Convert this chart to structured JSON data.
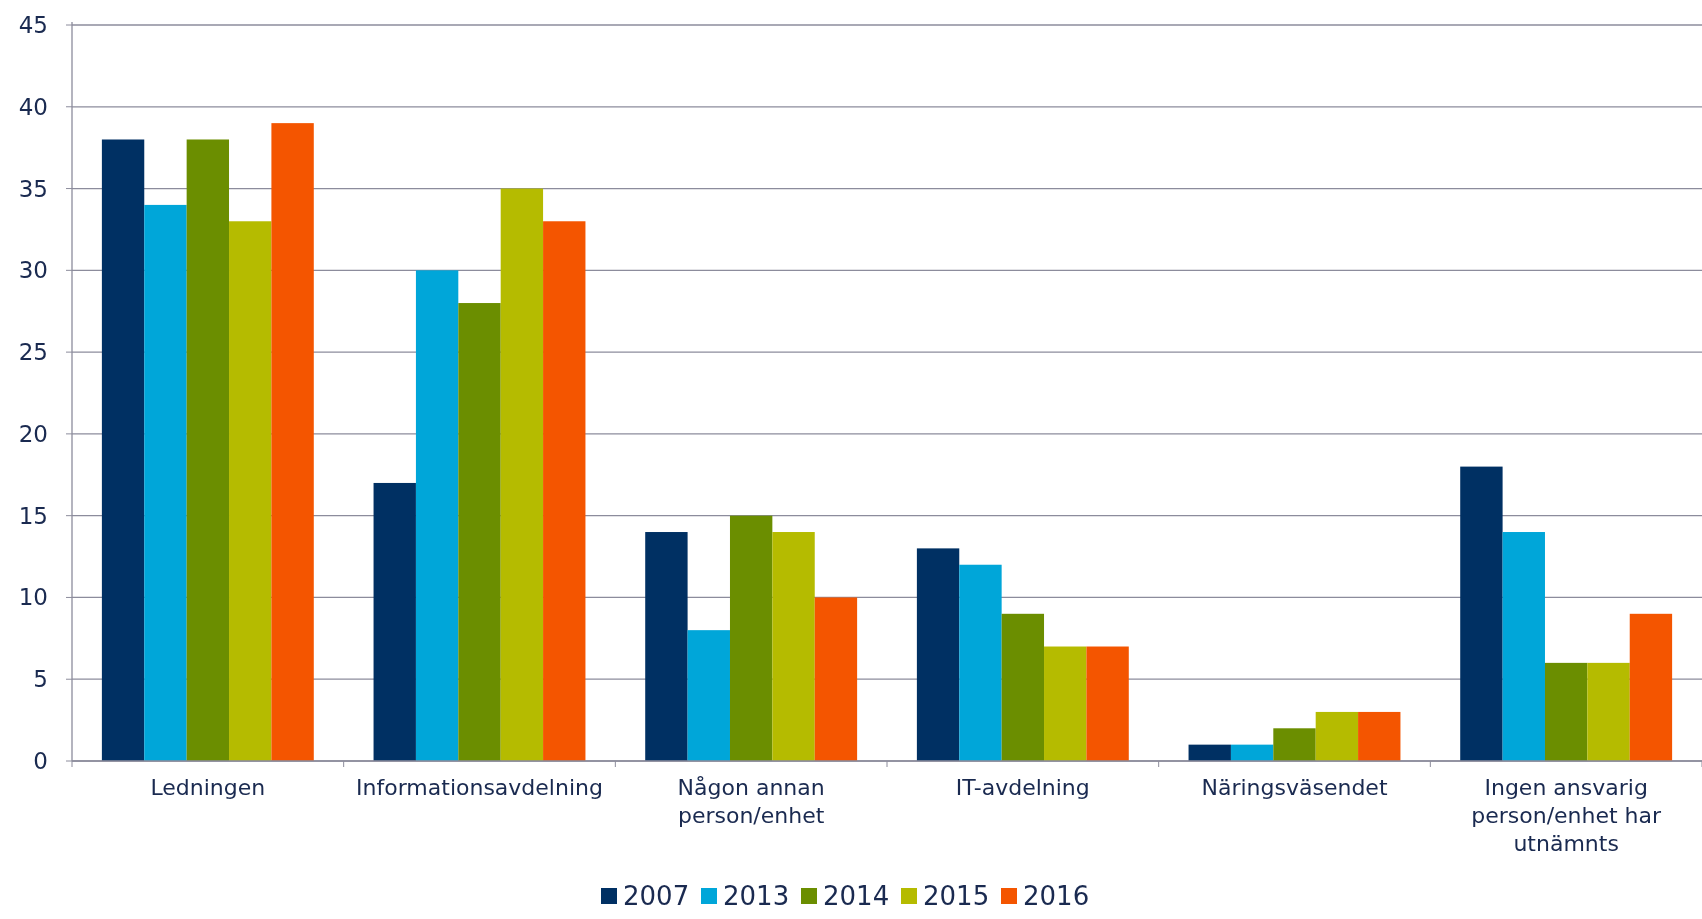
{
  "chart_data": {
    "type": "bar",
    "categories": [
      "Ledningen",
      "Informationsavdelning",
      "Någon annan person/enhet",
      "IT-avdelning",
      "Näringsväsendet",
      "Ingen ansvarig person/enhet har utnämnts"
    ],
    "series": [
      {
        "name": "2007",
        "color": "#003063",
        "values": [
          38,
          17,
          14,
          13,
          1,
          18
        ]
      },
      {
        "name": "2013",
        "color": "#00a6d9",
        "values": [
          34,
          30,
          8,
          12,
          1,
          14
        ]
      },
      {
        "name": "2014",
        "color": "#6b8e00",
        "values": [
          38,
          28,
          15,
          9,
          2,
          6
        ]
      },
      {
        "name": "2015",
        "color": "#b5bb00",
        "values": [
          33,
          35,
          14,
          7,
          3,
          6
        ]
      },
      {
        "name": "2016",
        "color": "#f45500",
        "values": [
          39,
          33,
          10,
          7,
          3,
          9
        ]
      }
    ],
    "ylim": [
      0,
      45
    ],
    "yticks": [
      0,
      5,
      10,
      15,
      20,
      25,
      30,
      35,
      40,
      45
    ],
    "grid": "y",
    "legend": "bottom"
  }
}
